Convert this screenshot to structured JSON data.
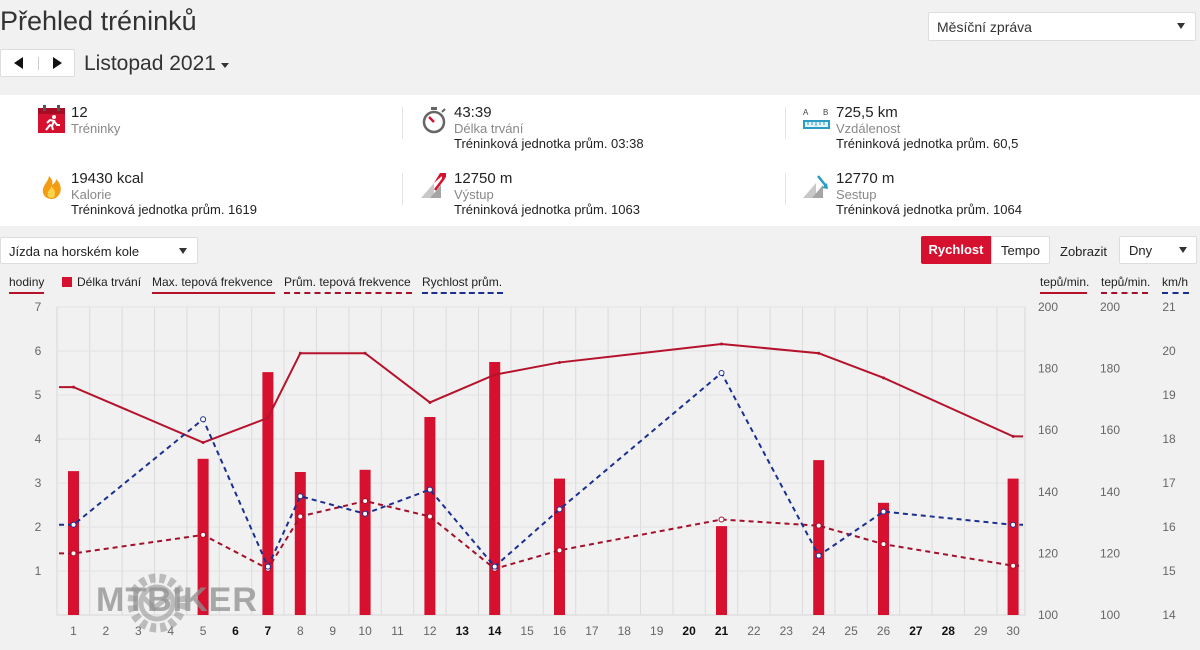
{
  "page": {
    "title": "Přehled tréninků"
  },
  "report_select": {
    "value": "Měsíční zpráva"
  },
  "period": {
    "label": "Listopad 2021"
  },
  "stats": [
    {
      "value": "12",
      "label": "Tréninky",
      "avg": "",
      "icon": "calendar-run-icon"
    },
    {
      "value": "43:39",
      "label": "Délka trvání",
      "avg": "Tréninková jednotka prům. 03:38",
      "icon": "stopwatch-icon"
    },
    {
      "value": "725,5 km",
      "label": "Vzdálenost",
      "avg": "Tréninková jednotka prům. 60,5",
      "icon": "ruler-distance-icon"
    },
    {
      "value": "19430 kcal",
      "label": "Kalorie",
      "avg": "Tréninková jednotka prům. 1619",
      "icon": "flame-icon"
    },
    {
      "value": "12750 m",
      "label": "Výstup",
      "avg": "Tréninková jednotka prům. 1063",
      "icon": "ascent-icon"
    },
    {
      "value": "12770 m",
      "label": "Sestup",
      "avg": "Tréninková jednotka prům. 1064",
      "icon": "descent-icon"
    }
  ],
  "controls": {
    "sport": "Jízda na horském kole",
    "speed_label": "Rychlost",
    "pace_label": "Tempo",
    "show_label": "Zobrazit",
    "days_label": "Dny"
  },
  "legend": {
    "hours_unit": "hodiny",
    "duration": "Délka trvání",
    "max_hr": "Max. tepová frekvence",
    "avg_hr": "Prům. tepová frekvence",
    "avg_speed": "Rychlost prům.",
    "hr_unit_max": "tepů/min.",
    "hr_unit_avg": "tepů/min.",
    "speed_unit": "km/h"
  },
  "watermark": "MTBIKER",
  "colors": {
    "accent": "#d6112f",
    "max_hr": "#b5122c",
    "avg_hr": "#a3102b",
    "speed": "#1b2f8f"
  },
  "chart_data": {
    "type": "bar",
    "categories": [
      "1",
      "2",
      "3",
      "4",
      "5",
      "6",
      "7",
      "8",
      "9",
      "10",
      "11",
      "12",
      "13",
      "14",
      "15",
      "16",
      "17",
      "18",
      "19",
      "20",
      "21",
      "22",
      "23",
      "24",
      "25",
      "26",
      "27",
      "28",
      "29",
      "30"
    ],
    "bold_days": [
      "6",
      "7",
      "13",
      "14",
      "20",
      "21",
      "27",
      "28"
    ],
    "y_left": {
      "label": "hodiny",
      "ticks": [
        1,
        2,
        3,
        4,
        5,
        6,
        7
      ],
      "ylim": [
        0,
        7
      ]
    },
    "y_right_hr": {
      "ticks": [
        100,
        120,
        140,
        160,
        180,
        200
      ],
      "ylim": [
        100,
        200
      ]
    },
    "y_right_speed": {
      "ticks": [
        14,
        15,
        16,
        17,
        18,
        19,
        20,
        21
      ],
      "ylim": [
        14,
        21
      ]
    },
    "series": [
      {
        "name": "Délka trvání",
        "type": "bar",
        "axis": "hours",
        "points": [
          [
            1,
            3.27
          ],
          [
            5,
            3.55
          ],
          [
            7,
            5.52
          ],
          [
            8,
            3.25
          ],
          [
            10,
            3.3
          ],
          [
            12,
            4.5
          ],
          [
            14,
            5.75
          ],
          [
            16,
            3.1
          ],
          [
            21,
            2.02
          ],
          [
            24,
            3.52
          ],
          [
            26,
            2.55
          ],
          [
            30,
            3.1
          ]
        ]
      },
      {
        "name": "Max. tepová frekvence",
        "type": "line",
        "axis": "hr",
        "points": [
          [
            0,
            174
          ],
          [
            1,
            174
          ],
          [
            5,
            156
          ],
          [
            7,
            164
          ],
          [
            8,
            185
          ],
          [
            10,
            185
          ],
          [
            12,
            169
          ],
          [
            14,
            178
          ],
          [
            16,
            182
          ],
          [
            21,
            188
          ],
          [
            24,
            185
          ],
          [
            26,
            177
          ],
          [
            30,
            158
          ],
          [
            31,
            158
          ]
        ]
      },
      {
        "name": "Prům. tepová frekvence",
        "type": "line",
        "dashed": true,
        "axis": "hr",
        "points": [
          [
            0,
            120
          ],
          [
            1,
            120
          ],
          [
            5,
            126
          ],
          [
            7,
            115
          ],
          [
            8,
            132
          ],
          [
            10,
            137
          ],
          [
            12,
            132
          ],
          [
            14,
            115
          ],
          [
            16,
            121
          ],
          [
            21,
            131
          ],
          [
            24,
            129
          ],
          [
            26,
            123
          ],
          [
            30,
            116
          ],
          [
            31,
            116
          ]
        ]
      },
      {
        "name": "Rychlost prům.",
        "type": "line",
        "dashed": true,
        "axis": "speed",
        "points": [
          [
            0,
            16.05
          ],
          [
            1,
            16.05
          ],
          [
            5,
            18.45
          ],
          [
            7,
            15.1
          ],
          [
            8,
            16.7
          ],
          [
            10,
            16.3
          ],
          [
            12,
            16.85
          ],
          [
            14,
            15.1
          ],
          [
            16,
            16.4
          ],
          [
            21,
            19.5
          ],
          [
            24,
            15.35
          ],
          [
            26,
            16.35
          ],
          [
            30,
            16.05
          ],
          [
            31,
            16.05
          ]
        ]
      }
    ],
    "grid": true
  }
}
